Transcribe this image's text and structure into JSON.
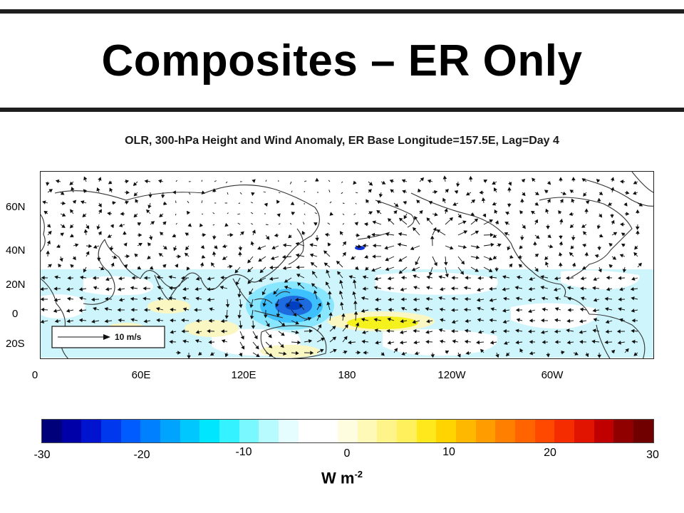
{
  "slide": {
    "title": "Composites – ER Only",
    "caption": "OLR, 300-hPa Height and Wind Anomaly, ER Base Longitude=157.5E, Lag=Day 4"
  },
  "map": {
    "lat_labels": [
      "60N",
      "40N",
      "20N",
      "0",
      "20S"
    ],
    "lon_labels": [
      "0",
      "60E",
      "120E",
      "180",
      "120W",
      "60W"
    ],
    "reference_vector_label": "10 m/s",
    "colors": {
      "land_outline": "#333333",
      "cool_anomaly": "#1e6be0",
      "light_cool": "#cdf5fb",
      "warm_anomaly": "#f3f000",
      "light_warm": "#fbf7c2"
    }
  },
  "colorbar": {
    "ticks": [
      "-30",
      "-20",
      "-10",
      "0",
      "10",
      "20",
      "30"
    ],
    "units_base": "W m",
    "units_exponent": "-2",
    "colors": [
      "#00007a",
      "#0000a8",
      "#0014d0",
      "#0038ee",
      "#005cff",
      "#0080ff",
      "#00a4ff",
      "#00c8ff",
      "#00e6ff",
      "#34f2ff",
      "#7af8ff",
      "#b8fbff",
      "#e6fdff",
      "#ffffff",
      "#ffffff",
      "#fffde0",
      "#fff9b8",
      "#fff48a",
      "#fff05c",
      "#ffe81c",
      "#ffd400",
      "#ffb800",
      "#ff9c00",
      "#ff8000",
      "#ff6400",
      "#ff4800",
      "#f52c00",
      "#e01400",
      "#c00000",
      "#900000",
      "#700000"
    ]
  }
}
